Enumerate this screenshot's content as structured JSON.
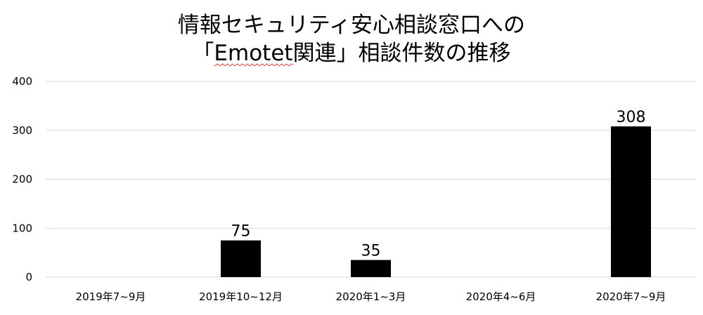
{
  "chart_data": {
    "type": "bar",
    "title_line1": "情報セキュリティ安心相談窓口への",
    "title_line2_prefix": "「",
    "title_line2_emotet": "Emotet",
    "title_line2_suffix": "関連」相談件数の推移",
    "categories": [
      "2019年7~9月",
      "2019年10~12月",
      "2020年1~3月",
      "2020年4~6月",
      "2020年7~9月"
    ],
    "values": [
      0,
      75,
      35,
      0,
      308
    ],
    "data_labels": [
      "",
      "75",
      "35",
      "",
      "308"
    ],
    "yticks": [
      0,
      100,
      200,
      300,
      400
    ],
    "ylim": [
      0,
      400
    ],
    "xlabel": "",
    "ylabel": "",
    "grid": true,
    "bar_color": "#000000",
    "grid_color": "#d9d9d9"
  }
}
